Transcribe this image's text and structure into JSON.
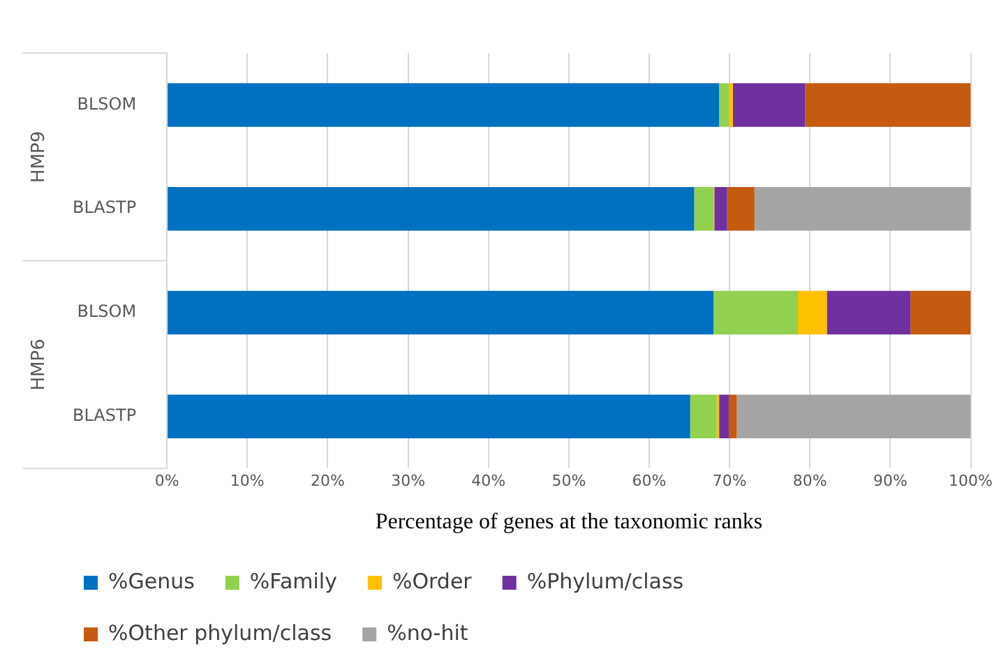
{
  "chart_data": {
    "type": "bar",
    "orientation": "horizontal",
    "stacked": true,
    "xlabel": "Percentage of genes at the taxonomic ranks",
    "categories": [
      "BLSOM",
      "BLASTP",
      "BLSOM",
      "BLASTP"
    ],
    "annotations": [
      "HMP9",
      "HMP6"
    ],
    "series": [
      {
        "name": "%Genus",
        "color": "#0070c0",
        "values": [
          68.7,
          65.6,
          68.0,
          65.1
        ]
      },
      {
        "name": "%Family",
        "color": "#92d050",
        "values": [
          1.2,
          2.4,
          10.5,
          3.3
        ]
      },
      {
        "name": "%Order",
        "color": "#ffc000",
        "values": [
          0.5,
          0.1,
          3.6,
          0.3
        ]
      },
      {
        "name": "%Phylum/class",
        "color": "#7030a0",
        "values": [
          9.0,
          1.6,
          10.4,
          1.2
        ]
      },
      {
        "name": "%Other phylum/class",
        "color": "#c55a11",
        "values": [
          20.6,
          3.4,
          7.5,
          1.0
        ]
      },
      {
        "name": "%no-hit",
        "color": "#a5a5a5",
        "values": [
          0,
          26.9,
          0,
          29.1
        ]
      }
    ],
    "xlim": [
      0,
      100
    ],
    "xticks": [
      {
        "value": 0,
        "label": "0%"
      },
      {
        "value": 10,
        "label": "10%"
      },
      {
        "value": 20,
        "label": "20%"
      },
      {
        "value": 30,
        "label": "30%"
      },
      {
        "value": 40,
        "label": "40%"
      },
      {
        "value": 50,
        "label": "50%"
      },
      {
        "value": 60,
        "label": "60%"
      },
      {
        "value": 70,
        "label": "70%"
      },
      {
        "value": 80,
        "label": "80%"
      },
      {
        "value": 90,
        "label": "90%"
      },
      {
        "value": 100,
        "label": "100%"
      }
    ],
    "grid": "x",
    "legend": "bottom"
  }
}
